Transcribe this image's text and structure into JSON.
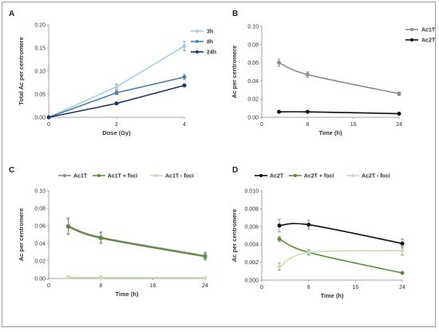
{
  "chart_data": [
    {
      "panel": "A",
      "type": "line",
      "xlabel": "Dose (Gy)",
      "ylabel": "Total Ac per centromere",
      "xlim": [
        0,
        4
      ],
      "ylim": [
        0,
        0.2
      ],
      "yticks": [
        "0.00",
        "0.05",
        "0.10",
        "0.15",
        "0.20"
      ],
      "xticks": [
        "0",
        "2",
        "4"
      ],
      "legend_position": "top-right-vertical",
      "series": [
        {
          "name": "3h",
          "color": "#a9cde5",
          "marker": "circle",
          "x": [
            0,
            2,
            4
          ],
          "y": [
            0.0,
            0.066,
            0.154
          ],
          "err": [
            0,
            0.006,
            0.01
          ]
        },
        {
          "name": "8h",
          "color": "#4e80a8",
          "marker": "circle",
          "x": [
            0,
            2,
            4
          ],
          "y": [
            0.0,
            0.053,
            0.087
          ],
          "err": [
            0,
            0.004,
            0.006
          ]
        },
        {
          "name": "24h",
          "color": "#1f3864",
          "marker": "circle",
          "x": [
            0,
            2,
            4
          ],
          "y": [
            0.0,
            0.03,
            0.069
          ],
          "err": [
            0,
            0.002,
            0.003
          ]
        }
      ]
    },
    {
      "panel": "B",
      "type": "line",
      "xlabel": "Time (h)",
      "ylabel": "Ac per centromere",
      "xlim": [
        0,
        24
      ],
      "ylim": [
        0,
        0.1
      ],
      "yticks": [
        "0.00",
        "0.02",
        "0.04",
        "0.06",
        "0.08",
        "0.10"
      ],
      "xticks": [
        "0",
        "8",
        "16",
        "24"
      ],
      "legend_position": "top-right-vertical",
      "series": [
        {
          "name": "Ac1T",
          "color": "#8c8c8c",
          "marker": "circle",
          "x": [
            3,
            8,
            24
          ],
          "y": [
            0.06,
            0.047,
            0.026
          ],
          "err": [
            0.004,
            0.003,
            0.002
          ]
        },
        {
          "name": "Ac2T",
          "color": "#111111",
          "marker": "circle",
          "x": [
            3,
            8,
            24
          ],
          "y": [
            0.006,
            0.006,
            0.004
          ],
          "err": [
            0.0005,
            0.0005,
            0.0004
          ]
        }
      ]
    },
    {
      "panel": "C",
      "type": "line",
      "xlabel": "Time (h)",
      "ylabel": "Ac per centromere",
      "xlim": [
        0,
        24
      ],
      "ylim": [
        0,
        0.1
      ],
      "yticks": [
        "0.00",
        "0.02",
        "0.04",
        "0.06",
        "0.08",
        "0.10"
      ],
      "xticks": [
        "0",
        "8",
        "16",
        "24"
      ],
      "legend_position": "top-horizontal",
      "series": [
        {
          "name": "Ac1T",
          "color": "#8c8c8c",
          "marker": "circle",
          "x": [
            3,
            8,
            24
          ],
          "y": [
            0.06,
            0.047,
            0.026
          ],
          "err": [
            0.009,
            0.006,
            0.004
          ]
        },
        {
          "name": "Ac1T + foci",
          "color": "#5a8a3a",
          "marker": "circle",
          "x": [
            3,
            8,
            24
          ],
          "y": [
            0.059,
            0.046,
            0.025
          ],
          "err": [
            0.009,
            0.006,
            0.004
          ]
        },
        {
          "name": "Ac1T - foci",
          "color": "#c6e0b4",
          "marker": "circle",
          "x": [
            3,
            8,
            24
          ],
          "y": [
            0.0015,
            0.0012,
            0.001
          ],
          "err": [
            0.0005,
            0.0004,
            0.0003
          ]
        }
      ]
    },
    {
      "panel": "D",
      "type": "line",
      "xlabel": "Time (h)",
      "ylabel": "Ac per centromere",
      "xlim": [
        0,
        24
      ],
      "ylim": [
        0,
        0.01
      ],
      "yticks": [
        "0.000",
        "0.002",
        "0.004",
        "0.006",
        "0.008",
        "0.010"
      ],
      "xticks": [
        "0",
        "8",
        "16",
        "24"
      ],
      "legend_position": "top-horizontal",
      "series": [
        {
          "name": "Ac2T",
          "color": "#111111",
          "marker": "circle",
          "x": [
            3,
            8,
            24
          ],
          "y": [
            0.0061,
            0.0062,
            0.0041
          ],
          "err": [
            0.0007,
            0.0005,
            0.0005
          ]
        },
        {
          "name": "Ac2T + foci",
          "color": "#5a8a3a",
          "marker": "circle",
          "x": [
            3,
            8,
            24
          ],
          "y": [
            0.0046,
            0.0031,
            0.0008
          ],
          "err": [
            0.0003,
            0.0002,
            0.0001
          ]
        },
        {
          "name": "Ac2T - foci",
          "color": "#c6e0b4",
          "marker": "circle",
          "x": [
            3,
            8,
            24
          ],
          "y": [
            0.0015,
            0.0031,
            0.0033
          ],
          "err": [
            0.0004,
            0.0003,
            0.0005
          ]
        }
      ]
    }
  ]
}
